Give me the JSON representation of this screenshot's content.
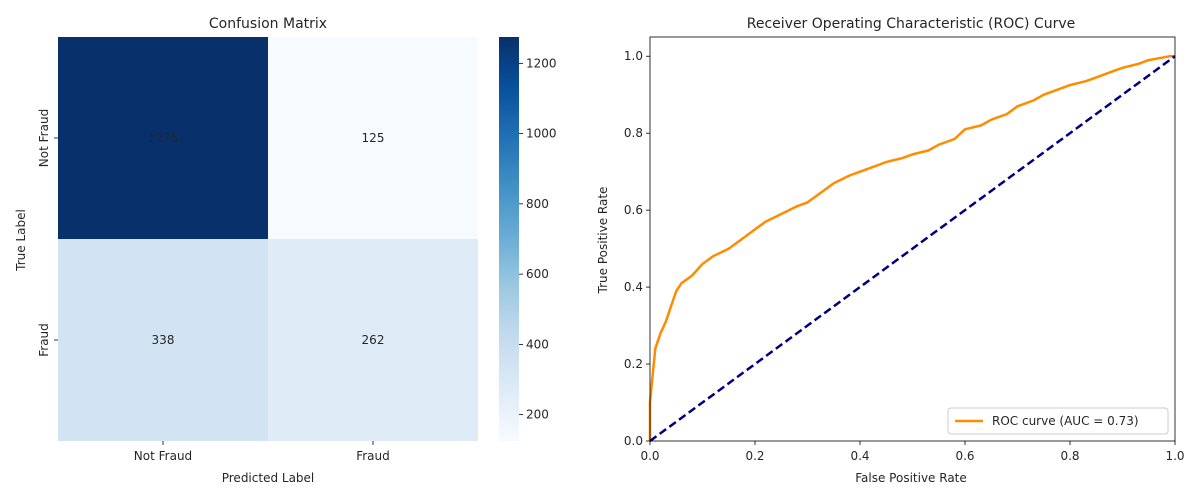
{
  "chart_data": [
    {
      "type": "heatmap",
      "title": "Confusion Matrix",
      "xlabel": "Predicted Label",
      "ylabel": "True Label",
      "x_categories": [
        "Not Fraud",
        "Fraud"
      ],
      "y_categories": [
        "Not Fraud",
        "Fraud"
      ],
      "values": [
        [
          1275,
          125
        ],
        [
          338,
          262
        ]
      ],
      "colorbar": {
        "min": 125,
        "max": 1275,
        "ticks": [
          200,
          400,
          600,
          800,
          1000,
          1200
        ],
        "colormap": "Blues"
      }
    },
    {
      "type": "line",
      "title": "Receiver Operating Characteristic (ROC) Curve",
      "xlabel": "False Positive Rate",
      "ylabel": "True Positive Rate",
      "xlim": [
        0.0,
        1.0
      ],
      "ylim": [
        0.0,
        1.05
      ],
      "xticks": [
        "0.0",
        "0.2",
        "0.4",
        "0.6",
        "0.8",
        "1.0"
      ],
      "yticks": [
        "0.0",
        "0.2",
        "0.4",
        "0.6",
        "0.8",
        "1.0"
      ],
      "legend_position": "lower-right",
      "series": [
        {
          "name": "ROC curve (AUC = 0.73)",
          "color": "#ff8c00",
          "x": [
            0.0,
            0.0,
            0.005,
            0.01,
            0.02,
            0.03,
            0.04,
            0.05,
            0.06,
            0.08,
            0.1,
            0.12,
            0.15,
            0.18,
            0.2,
            0.22,
            0.25,
            0.28,
            0.3,
            0.33,
            0.35,
            0.38,
            0.4,
            0.43,
            0.45,
            0.48,
            0.5,
            0.53,
            0.55,
            0.58,
            0.6,
            0.63,
            0.65,
            0.68,
            0.7,
            0.73,
            0.75,
            0.78,
            0.8,
            0.83,
            0.85,
            0.88,
            0.9,
            0.93,
            0.95,
            0.97,
            0.99,
            1.0
          ],
          "y": [
            0.0,
            0.1,
            0.17,
            0.24,
            0.28,
            0.31,
            0.35,
            0.39,
            0.41,
            0.43,
            0.46,
            0.48,
            0.5,
            0.53,
            0.55,
            0.57,
            0.59,
            0.61,
            0.62,
            0.65,
            0.67,
            0.69,
            0.7,
            0.715,
            0.725,
            0.735,
            0.745,
            0.755,
            0.77,
            0.785,
            0.81,
            0.82,
            0.835,
            0.85,
            0.87,
            0.885,
            0.9,
            0.915,
            0.925,
            0.935,
            0.945,
            0.96,
            0.97,
            0.98,
            0.99,
            0.995,
            1.0,
            1.0
          ]
        },
        {
          "name": "",
          "color": "#000080",
          "style": "dashed",
          "x": [
            0.0,
            1.0
          ],
          "y": [
            0.0,
            1.0
          ]
        }
      ]
    }
  ]
}
